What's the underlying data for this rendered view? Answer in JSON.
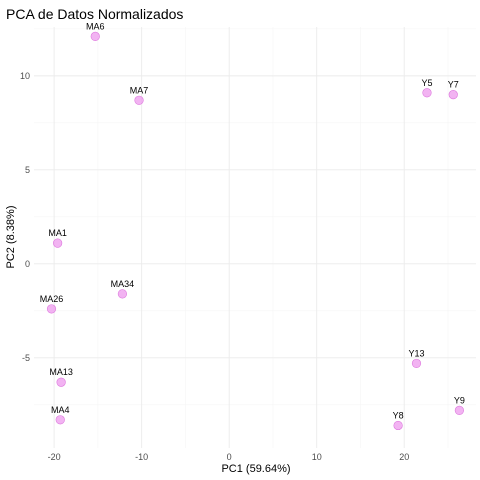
{
  "chart_data": {
    "type": "scatter",
    "title": "PCA de Datos Normalizados",
    "xlabel": "PC1 (59.64%)",
    "ylabel": "PC2 (8.38%)",
    "xlim": [
      -22.3,
      28.2
    ],
    "ylim": [
      -9.8,
      12.6
    ],
    "xticks": [
      -20,
      -10,
      0,
      10,
      20
    ],
    "yticks": [
      -5,
      0,
      5,
      10
    ],
    "grid": true,
    "point_color": "#ee99ee",
    "points": [
      {
        "label": "MA6",
        "x": -15.3,
        "y": 12.1
      },
      {
        "label": "MA7",
        "x": -10.3,
        "y": 8.7
      },
      {
        "label": "MA1",
        "x": -19.6,
        "y": 1.1
      },
      {
        "label": "MA34",
        "x": -12.2,
        "y": -1.6
      },
      {
        "label": "MA26",
        "x": -20.3,
        "y": -2.4
      },
      {
        "label": "MA13",
        "x": -19.2,
        "y": -6.3
      },
      {
        "label": "MA4",
        "x": -19.3,
        "y": -8.3
      },
      {
        "label": "Y5",
        "x": 22.6,
        "y": 9.1
      },
      {
        "label": "Y7",
        "x": 25.6,
        "y": 9.0
      },
      {
        "label": "Y13",
        "x": 21.4,
        "y": -5.3
      },
      {
        "label": "Y9",
        "x": 26.3,
        "y": -7.8
      },
      {
        "label": "Y8",
        "x": 19.3,
        "y": -8.6
      }
    ]
  }
}
